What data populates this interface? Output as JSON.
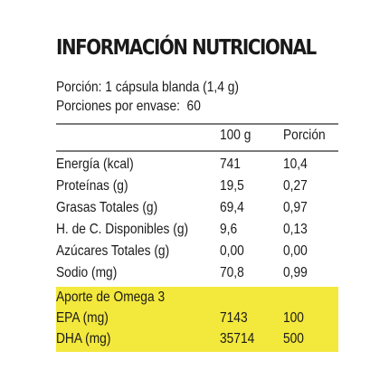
{
  "panel": {
    "title": "INFORMACIÓN NUTRICIONAL",
    "serving_size": "Porción: 1 cápsula blanda (1,4 g)",
    "servings_per_container": "Porciones por envase:  60",
    "columns": {
      "per_100g": "100 g",
      "per_serving": "Porción"
    },
    "rows": [
      {
        "label": "Energía (kcal)",
        "per_100g": "741",
        "per_serving": "10,4"
      },
      {
        "label": "Proteínas (g)",
        "per_100g": "19,5",
        "per_serving": "0,27"
      },
      {
        "label": "Grasas Totales (g)",
        "per_100g": "69,4",
        "per_serving": "0,97"
      },
      {
        "label": "H. de C. Disponibles (g)",
        "per_100g": "9,6",
        "per_serving": "0,13"
      },
      {
        "label": "Azúcares Totales (g)",
        "per_100g": "0,00",
        "per_serving": "0,00"
      },
      {
        "label": "Sodio (mg)",
        "per_100g": "70,8",
        "per_serving": "0,99"
      }
    ],
    "omega": {
      "heading": "Aporte de Omega 3",
      "rows": [
        {
          "label": "EPA (mg)",
          "per_100g": "7143",
          "per_serving": "100"
        },
        {
          "label": "DHA (mg)",
          "per_100g": "35714",
          "per_serving": "500"
        }
      ]
    },
    "colors": {
      "highlight": "#f3e83c",
      "rule": "#7b7b7b",
      "text": "#1a1a1a"
    }
  }
}
